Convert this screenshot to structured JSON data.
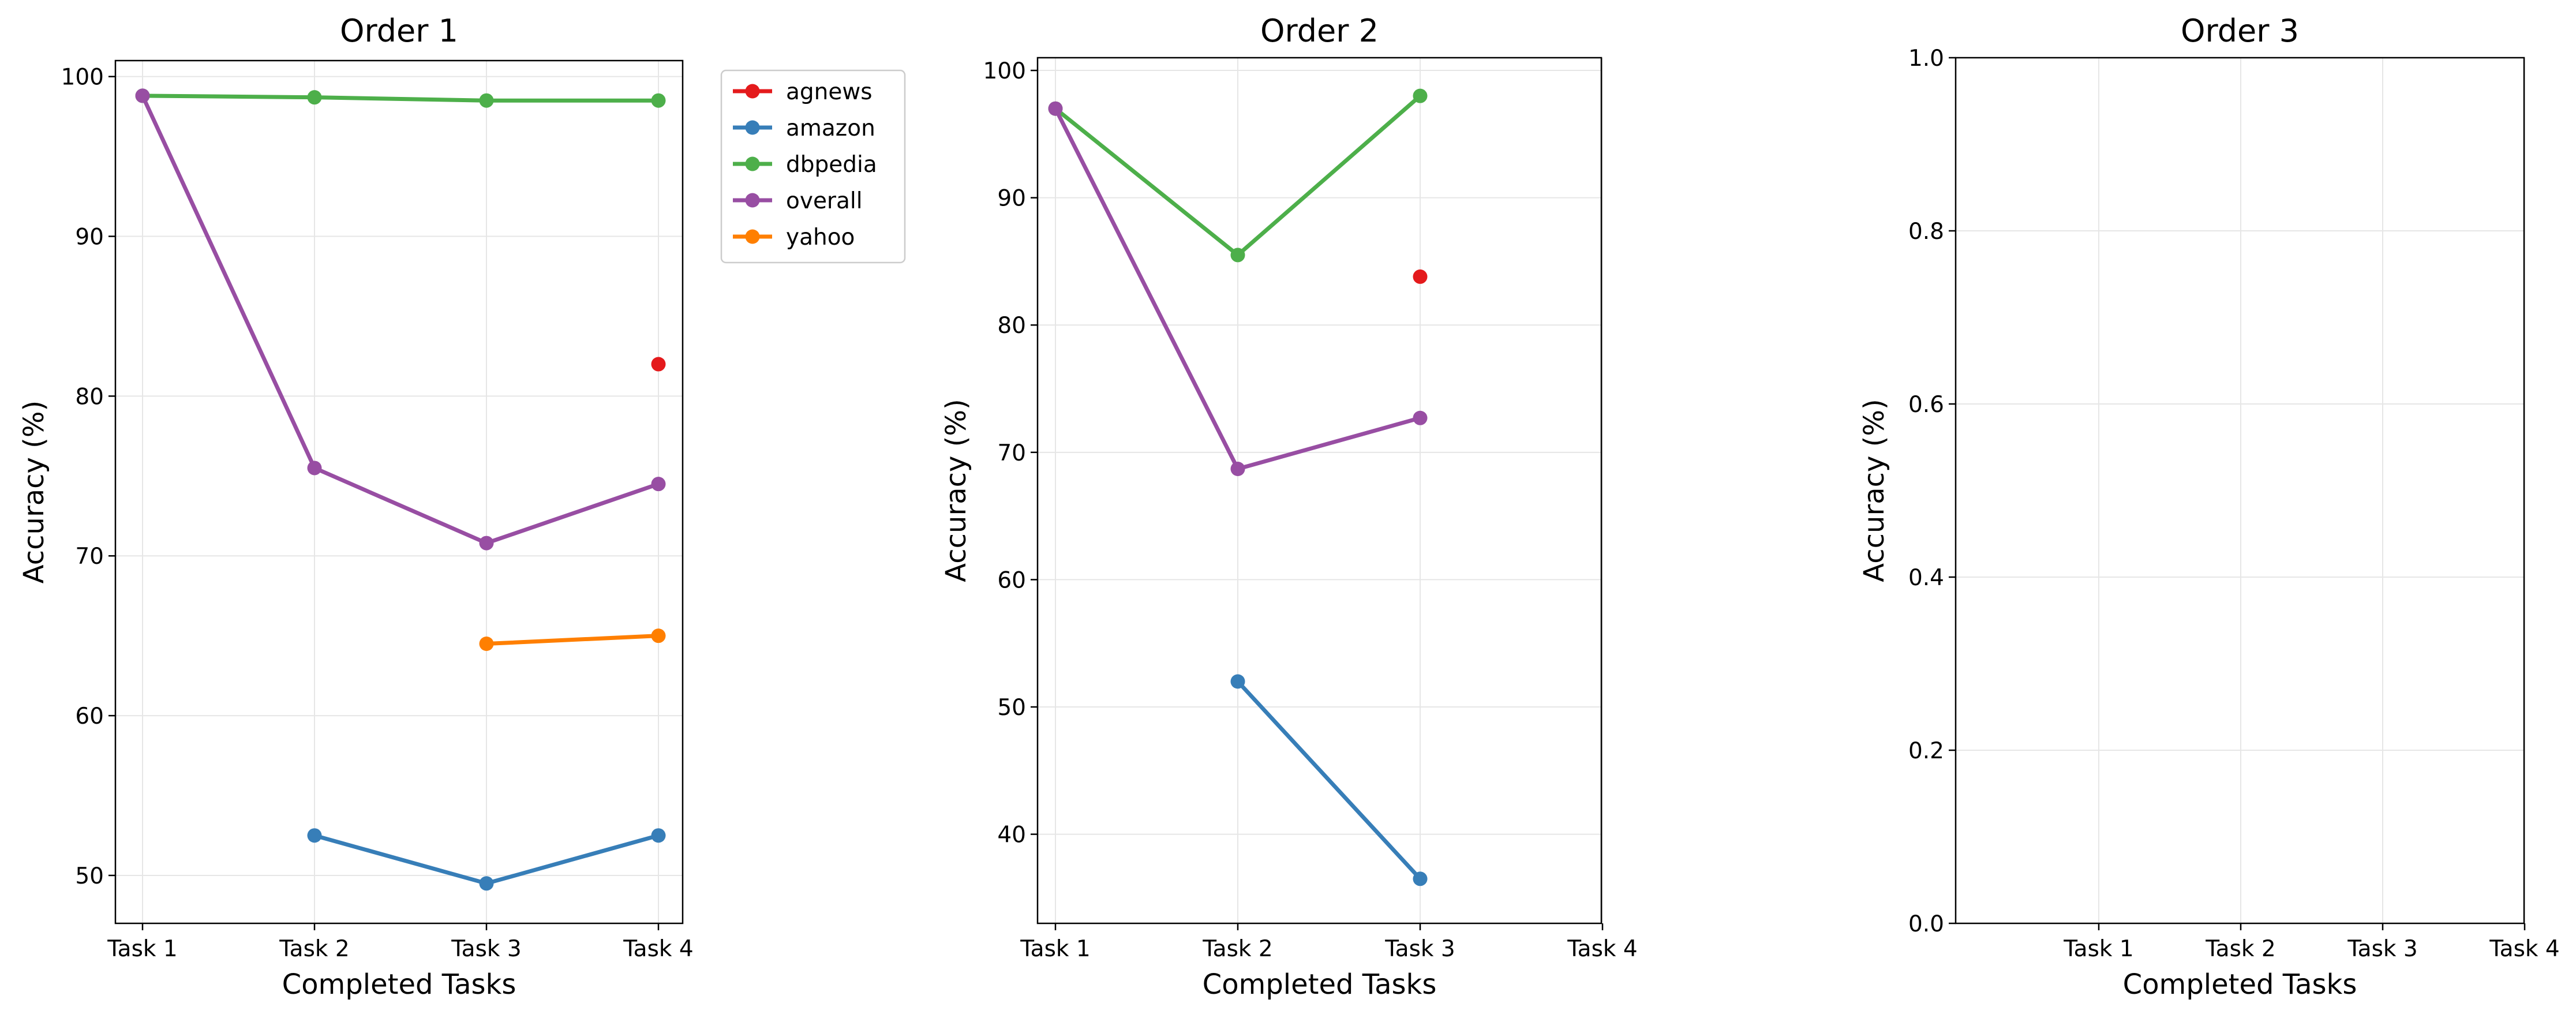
{
  "chart_data": [
    {
      "type": "line",
      "title": "Order 1",
      "xlabel": "Completed Tasks",
      "ylabel": "Accuracy (%)",
      "categories": [
        "Task 1",
        "Task 2",
        "Task 3",
        "Task 4"
      ],
      "ylim": [
        47,
        101
      ],
      "yticks": [
        "50",
        "60",
        "70",
        "80",
        "90",
        "100"
      ],
      "grid": true,
      "legend": "outside-upper-right",
      "series": [
        {
          "name": "agnews",
          "color": "#e41a1c",
          "values": [
            null,
            null,
            null,
            82.0
          ]
        },
        {
          "name": "amazon",
          "color": "#377eb8",
          "values": [
            null,
            52.5,
            49.5,
            52.5
          ]
        },
        {
          "name": "dbpedia",
          "color": "#4daf4a",
          "values": [
            98.8,
            98.7,
            98.5,
            98.5
          ]
        },
        {
          "name": "overall",
          "color": "#984ea3",
          "values": [
            98.8,
            75.5,
            70.8,
            74.5
          ]
        },
        {
          "name": "yahoo",
          "color": "#ff7f00",
          "values": [
            null,
            null,
            64.5,
            65.0
          ]
        }
      ]
    },
    {
      "type": "line",
      "title": "Order 2",
      "xlabel": "Completed Tasks",
      "ylabel": "Accuracy (%)",
      "categories": [
        "Task 1",
        "Task 2",
        "Task 3",
        "Task 4"
      ],
      "ylim": [
        33,
        101
      ],
      "yticks": [
        "40",
        "50",
        "60",
        "70",
        "80",
        "90",
        "100"
      ],
      "grid": true,
      "series": [
        {
          "name": "agnews",
          "color": "#e41a1c",
          "values": [
            null,
            null,
            83.8,
            null
          ]
        },
        {
          "name": "amazon",
          "color": "#377eb8",
          "values": [
            null,
            52.0,
            36.5,
            null
          ]
        },
        {
          "name": "dbpedia",
          "color": "#4daf4a",
          "values": [
            97.0,
            85.5,
            98.0,
            null
          ]
        },
        {
          "name": "overall",
          "color": "#984ea3",
          "values": [
            97.0,
            68.7,
            72.7,
            null
          ]
        }
      ]
    },
    {
      "type": "line",
      "title": "Order 3",
      "xlabel": "Completed Tasks",
      "ylabel": "Accuracy (%)",
      "categories": [
        "Task 1",
        "Task 2",
        "Task 3",
        "Task 4"
      ],
      "ylim": [
        0,
        1
      ],
      "yticks": [
        "0.0",
        "0.2",
        "0.4",
        "0.6",
        "0.8",
        "1.0"
      ],
      "grid": true,
      "series": []
    }
  ]
}
